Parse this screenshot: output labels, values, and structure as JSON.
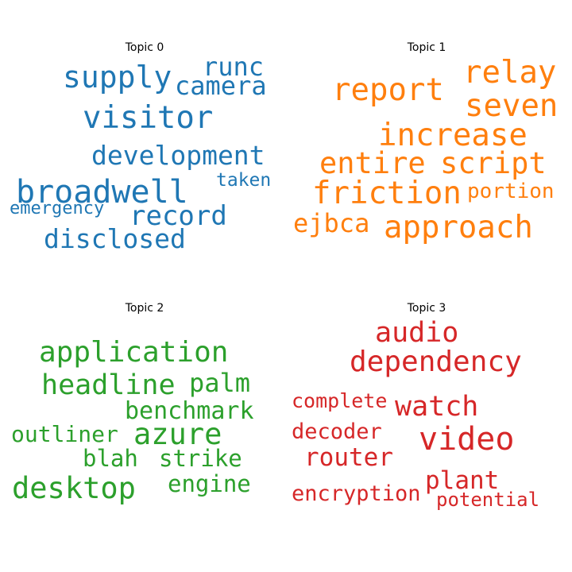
{
  "colors": {
    "topic0": "#1f77b4",
    "topic1": "#ff7f0e",
    "topic2": "#2ca02c",
    "topic3": "#d62728"
  },
  "topics": [
    {
      "title": "Topic 0",
      "color": "#1f77b4",
      "words": [
        "supply",
        "runc",
        "camera",
        "visitor",
        "development",
        "taken",
        "broadwell",
        "emergency",
        "record",
        "disclosed"
      ]
    },
    {
      "title": "Topic 1",
      "color": "#ff7f0e",
      "words": [
        "relay",
        "report",
        "seven",
        "increase",
        "entire",
        "script",
        "friction",
        "portion",
        "ejbca",
        "approach"
      ]
    },
    {
      "title": "Topic 2",
      "color": "#2ca02c",
      "words": [
        "application",
        "headline",
        "palm",
        "benchmark",
        "outliner",
        "azure",
        "blah",
        "strike",
        "desktop",
        "engine"
      ]
    },
    {
      "title": "Topic 3",
      "color": "#d62728",
      "words": [
        "audio",
        "dependency",
        "complete",
        "watch",
        "decoder",
        "video",
        "router",
        "plant",
        "encryption",
        "potential"
      ]
    }
  ]
}
